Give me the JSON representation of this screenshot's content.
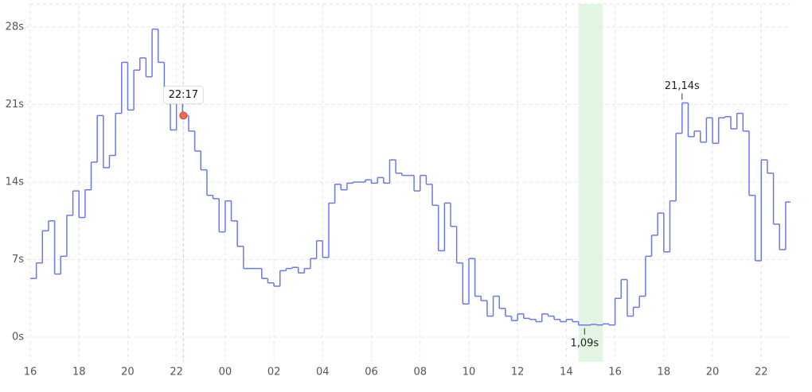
{
  "chart_data": {
    "type": "step",
    "x": [
      16,
      16.25,
      16.5,
      16.75,
      17,
      17.25,
      17.5,
      17.75,
      18,
      18.25,
      18.5,
      18.75,
      19,
      19.25,
      19.5,
      19.75,
      20,
      20.25,
      20.5,
      20.75,
      21,
      21.25,
      21.5,
      21.75,
      22,
      22.25,
      22.5,
      22.75,
      23,
      23.25,
      23.5,
      23.75,
      24,
      24.25,
      24.5,
      24.75,
      25,
      25.25,
      25.5,
      25.75,
      26,
      26.25,
      26.5,
      26.75,
      27,
      27.25,
      27.5,
      27.75,
      28,
      28.25,
      28.5,
      28.75,
      29,
      29.25,
      29.5,
      29.75,
      30,
      30.25,
      30.5,
      30.75,
      31,
      31.25,
      31.5,
      31.75,
      32,
      32.25,
      32.5,
      32.75,
      33,
      33.25,
      33.5,
      33.75,
      34,
      34.25,
      34.5,
      34.75,
      35,
      35.25,
      35.5,
      35.75,
      36,
      36.25,
      36.5,
      36.75,
      37,
      37.25,
      37.5,
      37.75,
      38,
      38.25,
      38.5,
      38.75,
      39,
      39.25,
      39.5,
      39.75,
      40,
      40.25,
      40.5,
      40.75,
      41,
      41.25,
      41.5,
      41.75,
      42,
      42.25,
      42.5,
      42.75,
      43,
      43.25,
      43.5,
      43.75,
      44,
      44.25,
      44.5,
      44.75,
      45,
      45.25,
      45.5,
      45.75,
      46,
      46.25,
      46.5,
      46.75,
      47
    ],
    "series": [
      {
        "color": "#6a78ee",
        "values": [
          5.3,
          6.7,
          9.6,
          10.5,
          5.7,
          7.3,
          11.0,
          13.2,
          10.8,
          13.3,
          15.8,
          20.0,
          15.3,
          16.4,
          20.2,
          24.8,
          20.5,
          24.1,
          25.2,
          23.5,
          27.8,
          24.8,
          21.4,
          18.7,
          21.4,
          20.0,
          18.6,
          16.8,
          15.1,
          12.8,
          12.5,
          9.5,
          12.3,
          10.5,
          8.2,
          6.2,
          6.2,
          6.2,
          5.3,
          4.9,
          4.6,
          6.0,
          6.2,
          6.3,
          5.8,
          6.2,
          7.1,
          8.7,
          7.2,
          12.1,
          13.8,
          13.3,
          13.9,
          14.0,
          14.0,
          14.2,
          13.9,
          14.4,
          13.9,
          16.0,
          14.8,
          14.6,
          14.6,
          13.2,
          14.6,
          13.8,
          11.9,
          7.8,
          12.1,
          10.0,
          6.7,
          3.0,
          7.1,
          3.7,
          3.3,
          1.9,
          3.7,
          2.6,
          1.9,
          1.5,
          2.1,
          1.7,
          1.6,
          1.4,
          2.1,
          1.9,
          1.6,
          1.4,
          1.6,
          1.4,
          1.1,
          1.09,
          1.15,
          1.1,
          1.2,
          1.1,
          3.5,
          5.2,
          1.9,
          2.7,
          3.7,
          7.3,
          9.2,
          11.2,
          7.7,
          12.3,
          18.4,
          21.14,
          18.1,
          18.6,
          17.6,
          19.8,
          17.5,
          19.8,
          19.9,
          18.8,
          20.2,
          18.6,
          12.8,
          6.9,
          16.0,
          14.8,
          10.2,
          7.9,
          12.2
        ]
      }
    ],
    "xlim": [
      16,
      47.2
    ],
    "xticks": [
      {
        "value": 16,
        "label": "16"
      },
      {
        "value": 18,
        "label": "18"
      },
      {
        "value": 20,
        "label": "20"
      },
      {
        "value": 22,
        "label": "22"
      },
      {
        "value": 24,
        "label": "00"
      },
      {
        "value": 26,
        "label": "02"
      },
      {
        "value": 28,
        "label": "04"
      },
      {
        "value": 30,
        "label": "06"
      },
      {
        "value": 32,
        "label": "08"
      },
      {
        "value": 34,
        "label": "10"
      },
      {
        "value": 36,
        "label": "12"
      },
      {
        "value": 38,
        "label": "14"
      },
      {
        "value": 40,
        "label": "16"
      },
      {
        "value": 42,
        "label": "18"
      },
      {
        "value": 44,
        "label": "20"
      },
      {
        "value": 46,
        "label": "22"
      }
    ],
    "ylim": [
      -2.22,
      30.07
    ],
    "yticks": [
      {
        "value": 0,
        "label": "0s"
      },
      {
        "value": 7,
        "label": "7s"
      },
      {
        "value": 14,
        "label": "14s"
      },
      {
        "value": 21,
        "label": "21s"
      },
      {
        "value": 28,
        "label": "28s"
      }
    ],
    "grid": true,
    "highlight": {
      "xlim": [
        38.5,
        39.5
      ],
      "color": "#e3f5e3"
    },
    "cursor": {
      "x": 22.2833,
      "y": 20.0,
      "label": "22:17",
      "color": "#f26b4f"
    },
    "annotations": [
      {
        "x": 42.75,
        "y": 21.14,
        "label": "21,14s",
        "position": "above"
      },
      {
        "x": 38.75,
        "y": 1.09,
        "label": "1,09s",
        "position": "below"
      }
    ]
  }
}
